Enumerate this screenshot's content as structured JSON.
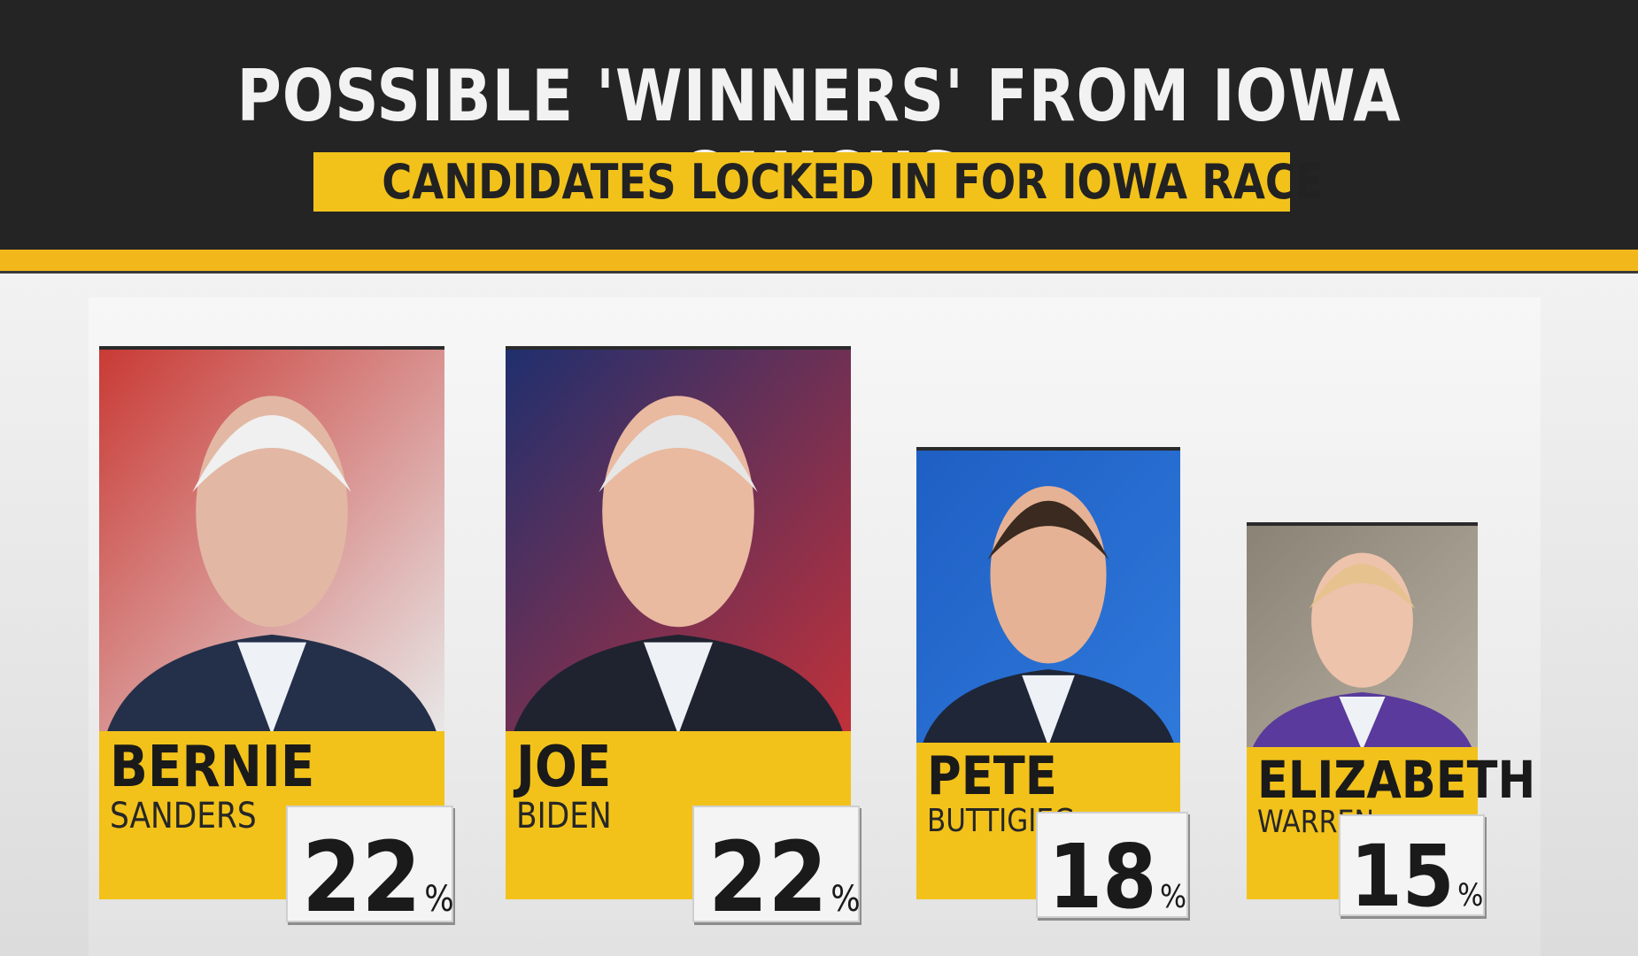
{
  "header": {
    "title": "POSSIBLE 'WINNERS' FROM IOWA CAUCUS",
    "subtitle": "CANDIDATES LOCKED IN FOR IOWA RACE"
  },
  "colors": {
    "accent_yellow": "#f2c21b",
    "header_dark": "#242424",
    "background": "#e9e9e9"
  },
  "chart_data": {
    "type": "bar",
    "title": "POSSIBLE 'WINNERS' FROM IOWA CAUCUS",
    "subtitle": "CANDIDATES LOCKED IN FOR IOWA RACE",
    "categories": [
      "BERNIE SANDERS",
      "JOE BIDEN",
      "PETE BUTTIGIEG",
      "ELIZABETH WARREN"
    ],
    "values": [
      22,
      22,
      18,
      15
    ],
    "unit": "%",
    "ylim": [
      0,
      22
    ],
    "grid": false,
    "candidates": [
      {
        "first": "BERNIE",
        "last": "SANDERS",
        "value": 22,
        "unit": "%",
        "photo": "bernie-sanders-photo"
      },
      {
        "first": "JOE",
        "last": "BIDEN",
        "value": 22,
        "unit": "%",
        "photo": "joe-biden-photo"
      },
      {
        "first": "PETE",
        "last": "BUTTIGIEG",
        "value": 18,
        "unit": "%",
        "photo": "pete-buttigieg-photo"
      },
      {
        "first": "ELIZABETH",
        "last": "WARREN",
        "value": 15,
        "unit": "%",
        "photo": "elizabeth-warren-photo"
      }
    ]
  }
}
